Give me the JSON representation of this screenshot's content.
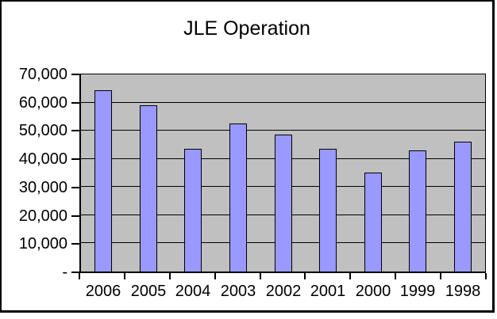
{
  "title": "JLE Operation",
  "chart_data": {
    "type": "bar",
    "title": "JLE Operation",
    "categories": [
      "2006",
      "2005",
      "2004",
      "2003",
      "2002",
      "2001",
      "2000",
      "1999",
      "1998"
    ],
    "values": [
      64500,
      59000,
      43500,
      52500,
      48500,
      43500,
      35000,
      43000,
      46000
    ],
    "xlabel": "",
    "ylabel": "",
    "ylim": [
      0,
      70000
    ],
    "y_tick_values": [
      70000,
      60000,
      50000,
      40000,
      30000,
      20000,
      10000,
      0
    ],
    "y_tick_labels": [
      "70,000",
      "60,000",
      "50,000",
      "40,000",
      "30,000",
      "20,000",
      "10,000",
      "-"
    ],
    "grid": true,
    "legend": false,
    "layout_hints": {
      "bar_color": "#9999FF",
      "bar_border_color": "#000000",
      "plot_background": "#C0C0C0",
      "chart_background": "#FFFFFF",
      "gridline_color": "#000000",
      "text_color": "#000000",
      "frame_border_color": "#000000"
    }
  }
}
